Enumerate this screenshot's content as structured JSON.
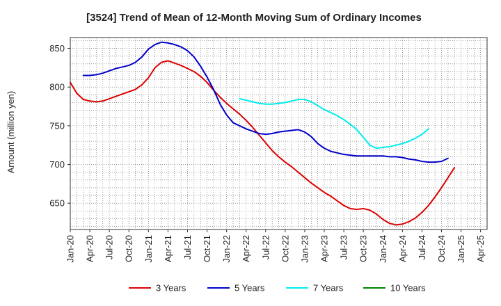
{
  "chart_data": {
    "type": "line",
    "title": "[3524]  Trend of Mean of 12-Month Moving Sum of Ordinary Incomes",
    "xlabel": "",
    "ylabel": "Amount (million yen)",
    "ylim": [
      616,
      864
    ],
    "yticks": [
      650,
      700,
      750,
      800,
      850
    ],
    "grid": true,
    "legend_position": "bottom-center",
    "x_tick_labels": [
      "Jan-20",
      "Apr-20",
      "Jul-20",
      "Oct-20",
      "Jan-21",
      "Apr-21",
      "Jul-21",
      "Oct-21",
      "Jan-22",
      "Apr-22",
      "Jul-22",
      "Oct-22",
      "Jan-23",
      "Apr-23",
      "Jul-23",
      "Oct-23",
      "Jan-24",
      "Apr-24",
      "Jul-24",
      "Oct-24",
      "Jan-25",
      "Apr-25"
    ],
    "x_months_total": 64,
    "series": [
      {
        "name": "3 Years",
        "color": "#dd0000",
        "start_month_index": 0,
        "values": [
          806,
          792,
          784,
          782,
          781,
          782,
          785,
          788,
          791,
          794,
          797,
          803,
          812,
          825,
          832,
          834,
          831,
          828,
          824,
          820,
          814,
          806,
          796,
          787,
          779,
          772,
          765,
          757,
          748,
          738,
          728,
          718,
          710,
          703,
          697,
          690,
          683,
          676,
          670,
          664,
          659,
          653,
          647,
          643,
          642,
          643,
          641,
          636,
          629,
          624,
          622,
          623,
          626,
          631,
          638,
          647,
          658,
          670,
          683,
          696
        ]
      },
      {
        "name": "5 Years",
        "color": "#0000cc",
        "start_month_index": 2,
        "values": [
          815,
          815,
          816,
          818,
          821,
          824,
          826,
          828,
          832,
          839,
          849,
          855,
          858,
          857,
          855,
          852,
          847,
          839,
          827,
          813,
          797,
          778,
          764,
          754,
          750,
          746,
          743,
          740,
          739,
          740,
          742,
          743,
          744,
          745,
          742,
          736,
          727,
          721,
          717,
          715,
          713,
          712,
          711,
          711,
          711,
          711,
          711,
          710,
          710,
          709,
          707,
          706,
          704,
          703,
          703,
          704,
          708
        ]
      },
      {
        "name": "7 Years",
        "color": "#00eeee",
        "start_month_index": 26,
        "values": [
          785,
          783,
          781,
          779,
          778,
          778,
          779,
          780,
          782,
          784,
          784,
          781,
          776,
          771,
          767,
          763,
          758,
          752,
          745,
          735,
          725,
          721,
          722,
          723,
          725,
          727,
          730,
          734,
          739,
          746
        ]
      },
      {
        "name": "10 Years",
        "color": "#008000",
        "start_month_index": 0,
        "values": []
      }
    ]
  }
}
